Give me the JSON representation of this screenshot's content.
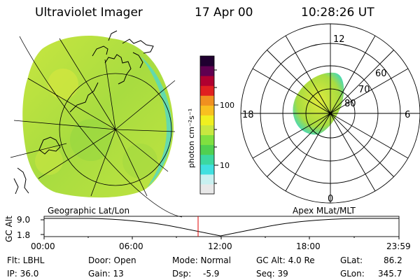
{
  "header": {
    "instrument": "Ultraviolet Imager",
    "date": "17 Apr 00",
    "time": "10:28:26 UT"
  },
  "colorbar": {
    "unit_label": "photon cm⁻²s⁻¹",
    "ticks": [
      "100",
      "10"
    ],
    "colors": [
      "#e8e8e8",
      "#c8f0f0",
      "#40e0e0",
      "#3cd8a0",
      "#50d050",
      "#80e040",
      "#c8e840",
      "#f0f020",
      "#f8c020",
      "#f09020",
      "#e02020",
      "#b00030",
      "#600050",
      "#200030"
    ]
  },
  "geo_panel": {
    "caption": "Geographic Lat/Lon"
  },
  "polar_panel": {
    "caption": "Apex MLat/MLT",
    "mlt_labels": {
      "top": "12",
      "left": "18",
      "right": "6",
      "bottom": "0"
    },
    "lat_labels": [
      "60",
      "70",
      "80"
    ]
  },
  "altitude_plot": {
    "ylabel": "GC Alt",
    "yticks": [
      "9.0",
      "1.8"
    ],
    "xticks": [
      "00:00",
      "06:00",
      "12:00",
      "18:00",
      "23:59"
    ],
    "cursor_time": "10:28"
  },
  "info": {
    "filter": "Flt: LBHL",
    "door": "Door: Open",
    "mode": "Mode: Normal",
    "gcalt": "GC Alt: 4.0 Re",
    "glat_label": "GLat:",
    "glat_value": "86.2",
    "ip": "IP: 36.0",
    "gain": "Gain: 13",
    "dsp_label": "Dsp:",
    "dsp_value": "-5.9",
    "seq": "Seq: 39",
    "glon_label": "GLon:",
    "glon_value": "345.7"
  }
}
